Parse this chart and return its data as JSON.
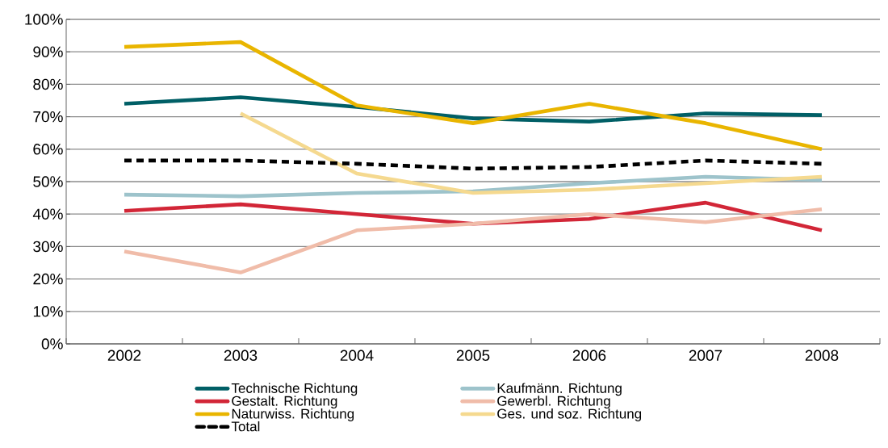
{
  "chart_data": {
    "type": "line",
    "categories": [
      "2002",
      "2003",
      "2004",
      "2005",
      "2006",
      "2007",
      "2008"
    ],
    "ylim": [
      0,
      100
    ],
    "yticks": [
      {
        "value": 0,
        "label": "0%"
      },
      {
        "value": 10,
        "label": "10%"
      },
      {
        "value": 20,
        "label": "20%"
      },
      {
        "value": 30,
        "label": "30%"
      },
      {
        "value": 40,
        "label": "40%"
      },
      {
        "value": 50,
        "label": "50%"
      },
      {
        "value": 60,
        "label": "60%"
      },
      {
        "value": 70,
        "label": "70%"
      },
      {
        "value": 80,
        "label": "80%"
      },
      {
        "value": 90,
        "label": "90%"
      },
      {
        "value": 100,
        "label": "100%"
      }
    ],
    "grid": "y",
    "legend": "bottom",
    "marker": "none",
    "series": [
      {
        "name": "Technische Richtung",
        "color": "#005f66",
        "values": [
          74,
          76,
          73,
          69.5,
          68.5,
          71,
          70.5
        ]
      },
      {
        "name": "Kaufmänn. Richtung",
        "color": "#9dc3cb",
        "values": [
          46,
          45.5,
          46.5,
          47,
          49.5,
          51.5,
          50.5
        ]
      },
      {
        "name": "Gestalt. Richtung",
        "color": "#d22637",
        "values": [
          41,
          43,
          40,
          37,
          38.5,
          43.5,
          35
        ]
      },
      {
        "name": "Gewerbl. Richtung",
        "color": "#f0bca9",
        "values": [
          28.5,
          22,
          35,
          37,
          40,
          37.5,
          41.5
        ]
      },
      {
        "name": "Naturwiss. Richtung",
        "color": "#e9b500",
        "values": [
          91.5,
          93,
          73.5,
          68,
          74,
          68,
          60
        ]
      },
      {
        "name": "Ges. und soz. Richtung",
        "color": "#f5d98f",
        "values": [
          null,
          71,
          52.5,
          46.5,
          47.5,
          49.5,
          51.5
        ]
      },
      {
        "name": "Total",
        "color": "#000000",
        "line_style": "dashed",
        "values": [
          56.5,
          56.5,
          55.5,
          54,
          54.5,
          56.5,
          55.5
        ]
      }
    ]
  }
}
